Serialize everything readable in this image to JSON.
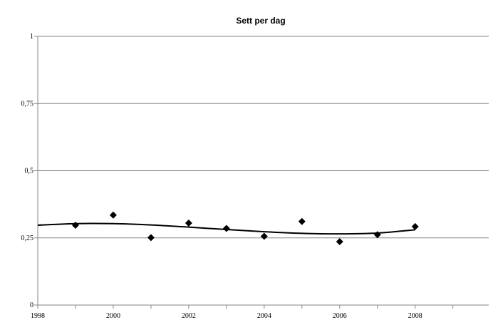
{
  "chart_data": {
    "type": "scatter",
    "title": "Sett per dag",
    "xlabel": "",
    "ylabel": "",
    "xlim": [
      1998,
      2009.95
    ],
    "ylim": [
      0,
      1
    ],
    "x_ticks": [
      1998,
      2000,
      2002,
      2004,
      2006,
      2008
    ],
    "x_tick_labels": [
      "1998",
      "2000",
      "2002",
      "2004",
      "2006",
      "2008"
    ],
    "y_ticks": [
      0,
      0.25,
      0.5,
      0.75,
      1
    ],
    "y_tick_labels": [
      "0",
      "0,25",
      "0,5",
      "0,75",
      "1"
    ],
    "grid": "horizontal",
    "legend": "none",
    "series": [
      {
        "marker": "diamond",
        "x": [
          1999,
          2000,
          2001,
          2002,
          2003,
          2004,
          2005,
          2006,
          2007,
          2008
        ],
        "y": [
          0.297,
          0.335,
          0.251,
          0.305,
          0.285,
          0.256,
          0.311,
          0.236,
          0.262,
          0.292
        ]
      }
    ],
    "trendline": {
      "type": "polynomial",
      "x": [
        1998,
        1999,
        2000,
        2001,
        2002,
        2003,
        2004,
        2005,
        2006,
        2007,
        2008
      ],
      "y": [
        0.297,
        0.303,
        0.303,
        0.298,
        0.29,
        0.281,
        0.273,
        0.267,
        0.265,
        0.268,
        0.28
      ]
    },
    "colors": {
      "marker": "#000000",
      "trendline": "#000000",
      "gridline": "#868686",
      "axis": "#868686"
    }
  }
}
